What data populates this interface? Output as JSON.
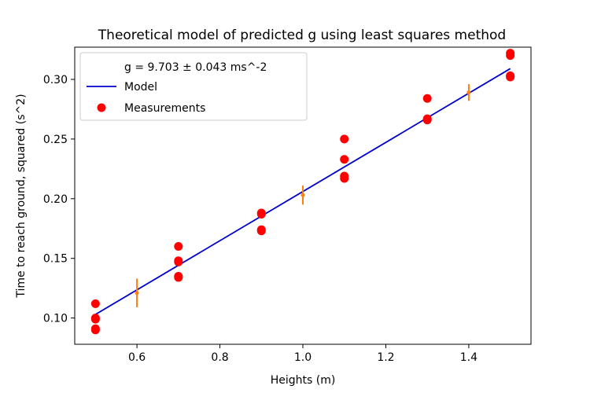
{
  "chart_data": {
    "type": "scatter",
    "title": "Theoretical model of predicted g using least squares method",
    "xlabel": "Heights (m)",
    "ylabel": "Time to reach ground, squared (s^2)",
    "xlim": [
      0.45,
      1.55
    ],
    "ylim": [
      0.078,
      0.327
    ],
    "x_ticks": [
      0.6,
      0.8,
      1.0,
      1.2,
      1.4
    ],
    "x_tick_labels": [
      "0.6",
      "0.8",
      "1.0",
      "1.2",
      "1.4"
    ],
    "y_ticks": [
      0.1,
      0.15,
      0.2,
      0.25,
      0.3
    ],
    "y_tick_labels": [
      "0.10",
      "0.15",
      "0.20",
      "0.25",
      "0.30"
    ],
    "grid": false,
    "legend_position": "top-left",
    "legend": {
      "annotation": "g = 9.703 ± 0.043 ms^-2",
      "model_label": "Model",
      "measurements_label": "Measurements"
    },
    "model": {
      "color": "#0000cc",
      "points": [
        [
          0.5,
          0.103
        ],
        [
          1.5,
          0.309
        ]
      ]
    },
    "measurements": {
      "color": "#ff0000",
      "points": [
        [
          0.5,
          0.112
        ],
        [
          0.5,
          0.1
        ],
        [
          0.5,
          0.099
        ],
        [
          0.5,
          0.091
        ],
        [
          0.5,
          0.09
        ],
        [
          0.7,
          0.16
        ],
        [
          0.7,
          0.148
        ],
        [
          0.7,
          0.147
        ],
        [
          0.7,
          0.135
        ],
        [
          0.7,
          0.134
        ],
        [
          0.9,
          0.188
        ],
        [
          0.9,
          0.187
        ],
        [
          0.9,
          0.174
        ],
        [
          0.9,
          0.173
        ],
        [
          1.1,
          0.25
        ],
        [
          1.1,
          0.233
        ],
        [
          1.1,
          0.219
        ],
        [
          1.1,
          0.217
        ],
        [
          1.3,
          0.284
        ],
        [
          1.3,
          0.267
        ],
        [
          1.3,
          0.266
        ],
        [
          1.5,
          0.322
        ],
        [
          1.5,
          0.32
        ],
        [
          1.5,
          0.303
        ],
        [
          1.5,
          0.302
        ]
      ]
    },
    "error_bars": {
      "color": "#ff7f0e",
      "points": [
        {
          "x": 0.6,
          "y": 0.121,
          "err": 0.012
        },
        {
          "x": 1.0,
          "y": 0.203,
          "err": 0.008
        },
        {
          "x": 1.4,
          "y": 0.289,
          "err": 0.007
        }
      ]
    }
  }
}
